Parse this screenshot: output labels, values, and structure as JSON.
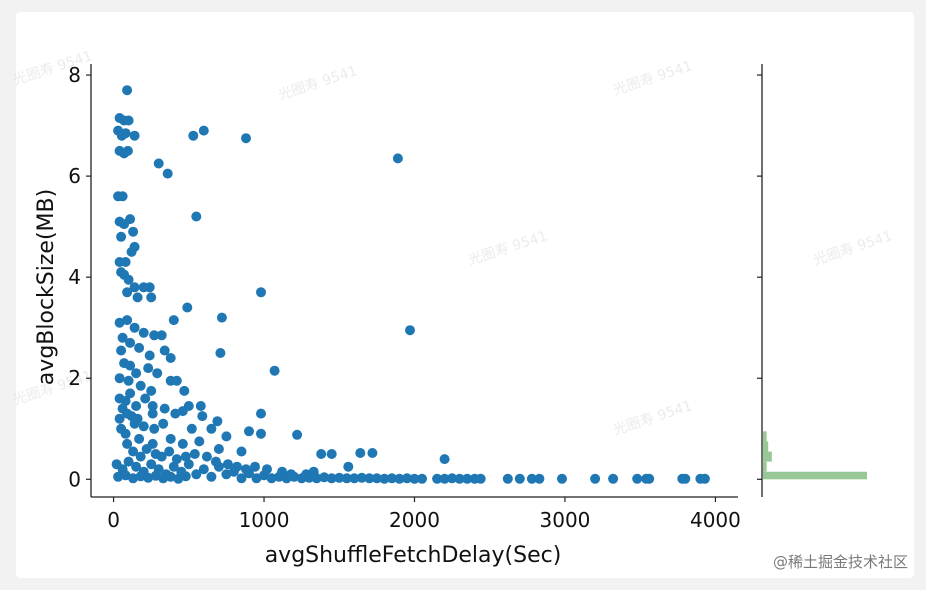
{
  "chart_data": {
    "type": "scatter",
    "xlabel": "avgShuffleFetchDelay(Sec)",
    "ylabel": "avgBlockSize(MB)",
    "xlim": [
      -150,
      4150
    ],
    "ylim": [
      -0.35,
      8.1
    ],
    "x_ticks": [
      0,
      1000,
      2000,
      3000,
      4000
    ],
    "y_ticks": [
      0,
      2,
      4,
      6,
      8
    ],
    "x_tick_labels": [
      "0",
      "1000",
      "2000",
      "3000",
      "4000"
    ],
    "y_tick_labels": [
      "0",
      "2",
      "4",
      "6",
      "8"
    ],
    "point_color": "#1f77b4",
    "points": [
      [
        90,
        7.7
      ],
      [
        40,
        7.15
      ],
      [
        70,
        7.1
      ],
      [
        100,
        7.1
      ],
      [
        30,
        6.9
      ],
      [
        55,
        6.8
      ],
      [
        80,
        6.85
      ],
      [
        140,
        6.8
      ],
      [
        40,
        6.5
      ],
      [
        70,
        6.45
      ],
      [
        95,
        6.5
      ],
      [
        300,
        6.25
      ],
      [
        360,
        6.05
      ],
      [
        530,
        6.8
      ],
      [
        600,
        6.9
      ],
      [
        880,
        6.75
      ],
      [
        1890,
        6.35
      ],
      [
        30,
        5.6
      ],
      [
        60,
        5.6
      ],
      [
        40,
        5.1
      ],
      [
        70,
        5.05
      ],
      [
        110,
        5.15
      ],
      [
        130,
        4.9
      ],
      [
        50,
        4.8
      ],
      [
        140,
        4.6
      ],
      [
        120,
        4.5
      ],
      [
        550,
        5.2
      ],
      [
        40,
        4.3
      ],
      [
        80,
        4.3
      ],
      [
        50,
        4.1
      ],
      [
        70,
        4.05
      ],
      [
        100,
        3.95
      ],
      [
        140,
        3.8
      ],
      [
        200,
        3.8
      ],
      [
        240,
        3.8
      ],
      [
        90,
        3.7
      ],
      [
        160,
        3.6
      ],
      [
        250,
        3.6
      ],
      [
        400,
        3.15
      ],
      [
        490,
        3.4
      ],
      [
        720,
        3.2
      ],
      [
        980,
        3.7
      ],
      [
        1970,
        2.95
      ],
      [
        40,
        3.1
      ],
      [
        90,
        3.15
      ],
      [
        140,
        3.0
      ],
      [
        200,
        2.9
      ],
      [
        270,
        2.85
      ],
      [
        320,
        2.85
      ],
      [
        60,
        2.8
      ],
      [
        110,
        2.7
      ],
      [
        170,
        2.6
      ],
      [
        50,
        2.55
      ],
      [
        240,
        2.45
      ],
      [
        340,
        2.55
      ],
      [
        380,
        2.4
      ],
      [
        710,
        2.5
      ],
      [
        1070,
        2.15
      ],
      [
        70,
        2.3
      ],
      [
        110,
        2.25
      ],
      [
        150,
        2.1
      ],
      [
        230,
        2.2
      ],
      [
        290,
        2.1
      ],
      [
        40,
        2.0
      ],
      [
        100,
        1.95
      ],
      [
        180,
        1.85
      ],
      [
        380,
        1.95
      ],
      [
        420,
        1.95
      ],
      [
        250,
        1.75
      ],
      [
        470,
        1.75
      ],
      [
        110,
        1.7
      ],
      [
        210,
        1.6
      ],
      [
        80,
        1.55
      ],
      [
        150,
        1.45
      ],
      [
        260,
        1.45
      ],
      [
        340,
        1.4
      ],
      [
        500,
        1.45
      ],
      [
        580,
        1.45
      ],
      [
        260,
        1.3
      ],
      [
        410,
        1.3
      ],
      [
        460,
        1.35
      ],
      [
        590,
        1.25
      ],
      [
        690,
        1.15
      ],
      [
        980,
        1.3
      ],
      [
        40,
        1.2
      ],
      [
        140,
        1.1
      ],
      [
        200,
        1.05
      ],
      [
        270,
        1.0
      ],
      [
        330,
        1.1
      ],
      [
        520,
        1.0
      ],
      [
        650,
        1.0
      ],
      [
        900,
        0.95
      ],
      [
        980,
        0.9
      ],
      [
        750,
        0.85
      ],
      [
        80,
        0.9
      ],
      [
        170,
        0.8
      ],
      [
        260,
        0.7
      ],
      [
        380,
        0.8
      ],
      [
        460,
        0.7
      ],
      [
        570,
        0.75
      ],
      [
        700,
        0.6
      ],
      [
        850,
        0.55
      ],
      [
        1220,
        0.88
      ],
      [
        1380,
        0.5
      ],
      [
        1450,
        0.5
      ],
      [
        1640,
        0.52
      ],
      [
        1720,
        0.52
      ],
      [
        1560,
        0.25
      ],
      [
        2200,
        0.4
      ],
      [
        20,
        0.3
      ],
      [
        60,
        0.2
      ],
      [
        100,
        0.35
      ],
      [
        150,
        0.25
      ],
      [
        200,
        0.15
      ],
      [
        250,
        0.3
      ],
      [
        300,
        0.2
      ],
      [
        350,
        0.1
      ],
      [
        400,
        0.25
      ],
      [
        450,
        0.15
      ],
      [
        500,
        0.3
      ],
      [
        550,
        0.1
      ],
      [
        600,
        0.2
      ],
      [
        650,
        0.05
      ],
      [
        700,
        0.25
      ],
      [
        750,
        0.1
      ],
      [
        800,
        0.15
      ],
      [
        850,
        0.02
      ],
      [
        900,
        0.12
      ],
      [
        950,
        0.02
      ],
      [
        1000,
        0.08
      ],
      [
        1050,
        0.02
      ],
      [
        1100,
        0.05
      ],
      [
        1150,
        0.02
      ],
      [
        1200,
        0.05
      ],
      [
        1250,
        0.02
      ],
      [
        1300,
        0.03
      ],
      [
        1350,
        0.02
      ],
      [
        1400,
        0.04
      ],
      [
        1450,
        0.02
      ],
      [
        1500,
        0.03
      ],
      [
        1550,
        0.02
      ],
      [
        1600,
        0.02
      ],
      [
        1650,
        0.03
      ],
      [
        1700,
        0.02
      ],
      [
        1750,
        0.02
      ],
      [
        1800,
        0.01
      ],
      [
        1850,
        0.02
      ],
      [
        1900,
        0.01
      ],
      [
        1950,
        0.02
      ],
      [
        2000,
        0.01
      ],
      [
        2050,
        0.01
      ],
      [
        2150,
        0.01
      ],
      [
        2200,
        0.01
      ],
      [
        2250,
        0.02
      ],
      [
        2300,
        0.01
      ],
      [
        2350,
        0.01
      ],
      [
        2400,
        0.01
      ],
      [
        2440,
        0.01
      ],
      [
        2620,
        0.01
      ],
      [
        2700,
        0.01
      ],
      [
        2780,
        0.01
      ],
      [
        2830,
        0.01
      ],
      [
        2980,
        0.01
      ],
      [
        3200,
        0.01
      ],
      [
        3320,
        0.01
      ],
      [
        3480,
        0.01
      ],
      [
        3540,
        0.01
      ],
      [
        3560,
        0.01
      ],
      [
        3780,
        0.01
      ],
      [
        3800,
        0.01
      ],
      [
        3900,
        0.01
      ],
      [
        3930,
        0.01
      ],
      [
        30,
        0.05
      ],
      [
        80,
        0.08
      ],
      [
        130,
        0.02
      ],
      [
        180,
        0.06
      ],
      [
        230,
        0.03
      ],
      [
        280,
        0.07
      ],
      [
        330,
        0.02
      ],
      [
        380,
        0.05
      ],
      [
        430,
        0.01
      ],
      [
        480,
        0.06
      ],
      [
        40,
        1.6
      ],
      [
        60,
        1.4
      ],
      [
        90,
        1.3
      ],
      [
        120,
        1.25
      ],
      [
        160,
        1.2
      ],
      [
        50,
        1.0
      ],
      [
        90,
        0.7
      ],
      [
        130,
        0.55
      ],
      [
        180,
        0.45
      ],
      [
        220,
        0.6
      ],
      [
        280,
        0.5
      ],
      [
        320,
        0.45
      ],
      [
        370,
        0.55
      ],
      [
        420,
        0.4
      ],
      [
        480,
        0.45
      ],
      [
        540,
        0.5
      ],
      [
        620,
        0.45
      ],
      [
        680,
        0.35
      ],
      [
        760,
        0.3
      ],
      [
        820,
        0.25
      ],
      [
        880,
        0.2
      ],
      [
        940,
        0.25
      ],
      [
        1020,
        0.2
      ],
      [
        1120,
        0.15
      ],
      [
        1180,
        0.1
      ],
      [
        1280,
        0.1
      ],
      [
        1330,
        0.15
      ]
    ],
    "marginal_histogram": {
      "orientation": "horizontal",
      "color": "#98c896",
      "bins": [
        {
          "y": [
            0.0,
            0.15
          ],
          "count": 1.0
        },
        {
          "y": [
            0.15,
            0.35
          ],
          "count": 0.035
        },
        {
          "y": [
            0.35,
            0.55
          ],
          "count": 0.085
        },
        {
          "y": [
            0.55,
            0.75
          ],
          "count": 0.05
        },
        {
          "y": [
            0.75,
            0.95
          ],
          "count": 0.035
        }
      ]
    }
  },
  "watermark": "@稀土掘金技术社区",
  "faint_watermark": "光圈寿 9541"
}
